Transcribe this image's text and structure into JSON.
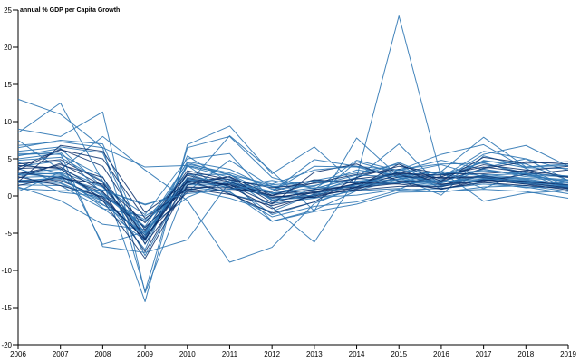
{
  "chart_data": {
    "type": "line",
    "title": "annual % GDP per Capita Growth",
    "xlabel": "",
    "ylabel": "",
    "x": [
      2006,
      2007,
      2008,
      2009,
      2010,
      2011,
      2012,
      2013,
      2014,
      2015,
      2016,
      2017,
      2018,
      2019
    ],
    "xlim": [
      2006,
      2019
    ],
    "ylim": [
      -20,
      25
    ],
    "yticks": [
      -20,
      -15,
      -10,
      -5,
      0,
      5,
      10,
      15,
      20,
      25
    ],
    "grid": false,
    "colors": {
      "light": "#2f77b4",
      "dark": "#0b2f6b"
    },
    "series": [
      {
        "values": [
          13.0,
          11.0,
          6.5,
          -12.8,
          6.5,
          8.0,
          2.5,
          1.0,
          2.5,
          24.2,
          2.5,
          6.0,
          5.0,
          3.5
        ]
      },
      {
        "values": [
          8.5,
          12.5,
          2.0,
          -14.2,
          6.9,
          9.4,
          3.0,
          6.6,
          1.5,
          3.5,
          5.6,
          6.9,
          3.7,
          1.3
        ]
      },
      {
        "values": [
          9.0,
          8.0,
          11.3,
          -13.0,
          1.5,
          8.1,
          3.3,
          -2.0,
          7.8,
          2.6,
          3.3,
          7.9,
          3.9,
          4.1
        ]
      },
      {
        "values": [
          6.5,
          7.5,
          7.0,
          -6.0,
          4.0,
          2.5,
          -1.5,
          -6.2,
          2.4,
          7.0,
          1.2,
          3.8,
          5.0,
          2.1
        ]
      },
      {
        "values": [
          7.5,
          3.5,
          8.0,
          3.5,
          -0.6,
          -8.9,
          -6.9,
          -1.0,
          1.2,
          1.8,
          3.2,
          1.0,
          3.4,
          1.1
        ]
      },
      {
        "values": [
          6.8,
          7.3,
          6.5,
          3.9,
          4.1,
          2.9,
          0.3,
          0.4,
          2.5,
          4.5,
          2.2,
          4.7,
          4.3,
          2.1
        ]
      },
      {
        "values": [
          5.7,
          5.6,
          2.6,
          -8.0,
          2.1,
          2.3,
          -3.4,
          -1.9,
          0.7,
          2.3,
          2.9,
          4.5,
          2.8,
          1.9
        ]
      },
      {
        "values": [
          6.0,
          6.6,
          5.8,
          -6.5,
          4.3,
          3.1,
          1.3,
          1.3,
          3.5,
          2.8,
          3.3,
          2.7,
          2.3,
          1.5
        ]
      },
      {
        "values": [
          5.4,
          6.4,
          1.2,
          -5.6,
          2.3,
          1.1,
          0.0,
          2.1,
          1.8,
          3.2,
          1.8,
          2.8,
          3.0,
          1.8
        ]
      },
      {
        "values": [
          4.5,
          3.0,
          -0.3,
          -7.2,
          5.4,
          1.8,
          0.4,
          0.8,
          2.0,
          2.5,
          1.4,
          2.3,
          1.7,
          1.0
        ]
      },
      {
        "values": [
          5.0,
          5.7,
          -6.8,
          -7.6,
          -5.9,
          1.9,
          0.6,
          4.0,
          3.9,
          2.5,
          0.1,
          5.4,
          3.9,
          4.3
        ]
      },
      {
        "values": [
          4.0,
          4.7,
          -6.5,
          -4.8,
          2.2,
          1.1,
          0.6,
          4.9,
          4.0,
          2.7,
          2.1,
          5.6,
          6.8,
          4.0
        ]
      },
      {
        "values": [
          3.7,
          1.8,
          -0.7,
          -5.2,
          2.9,
          2.9,
          -0.6,
          0.0,
          1.7,
          2.3,
          2.9,
          2.4,
          2.0,
          1.3
        ]
      },
      {
        "values": [
          3.2,
          3.6,
          1.3,
          -5.0,
          1.8,
          0.5,
          -2.8,
          -1.4,
          -0.8,
          0.8,
          1.0,
          1.6,
          1.2,
          0.3
        ]
      },
      {
        "values": [
          2.8,
          3.1,
          0.0,
          -3.4,
          1.7,
          1.7,
          -2.5,
          -0.8,
          1.0,
          3.6,
          4.3,
          4.4,
          3.1,
          0.9
        ]
      },
      {
        "values": [
          2.5,
          2.7,
          0.2,
          -4.3,
          1.5,
          1.5,
          0.4,
          1.1,
          1.3,
          2.0,
          1.4,
          2.2,
          1.6,
          1.3
        ]
      },
      {
        "values": [
          2.1,
          2.3,
          -0.6,
          -5.5,
          4.1,
          0.2,
          -1.0,
          -0.3,
          0.7,
          1.0,
          0.5,
          1.2,
          1.4,
          0.6
        ]
      },
      {
        "values": [
          1.8,
          1.7,
          -1.2,
          -3.4,
          1.2,
          0.6,
          -3.4,
          -2.1,
          -1.1,
          0.5,
          0.6,
          0.9,
          0.6,
          -0.3
        ]
      },
      {
        "values": [
          1.5,
          1.4,
          -1.7,
          -2.7,
          0.9,
          -0.3,
          -2.1,
          0.3,
          1.5,
          3.1,
          4.2,
          2.6,
          2.2,
          1.2
        ]
      },
      {
        "values": [
          3.0,
          0.5,
          -0.1,
          -3.2,
          3.0,
          1.2,
          2.1,
          1.0,
          2.4,
          1.8,
          1.2,
          2.9,
          2.4,
          2.1
        ]
      },
      {
        "values": [
          1.2,
          -0.6,
          -3.8,
          -4.5,
          -0.2,
          2.1,
          1.3,
          -0.2,
          0.1,
          0.9,
          3.3,
          -0.7,
          0.4,
          0.7
        ]
      },
      {
        "values": [
          2.0,
          2.5,
          0.8,
          -1.2,
          0.6,
          4.8,
          1.2,
          2.1,
          3.1,
          4.3,
          0.9,
          1.9,
          1.1,
          1.3
        ]
      },
      {
        "values": [
          0.6,
          3.2,
          1.2,
          -2.5,
          5.0,
          5.7,
          -0.6,
          0.9,
          4.8,
          3.4,
          4.8,
          3.6,
          2.8,
          2.6
        ]
      },
      {
        "values": [
          3.2,
          2.9,
          -1.6,
          -6.0,
          4.1,
          2.9,
          -0.5,
          -0.2,
          4.6,
          3.0,
          1.7,
          4.8,
          3.8,
          3.7
        ]
      },
      {
        "values": [
          2.9,
          4.2,
          2.5,
          -5.7,
          2.0,
          1.5,
          -1.1,
          3.2,
          4.3,
          2.0,
          2.0,
          5.2,
          4.4,
          4.6
        ],
        "dark": true
      },
      {
        "values": [
          4.1,
          3.7,
          -0.6,
          -8.4,
          1.5,
          2.6,
          0.1,
          0.9,
          1.2,
          4.3,
          2.0,
          3.7,
          4.6,
          4.3
        ],
        "dark": true
      },
      {
        "values": [
          2.0,
          2.1,
          -0.3,
          -5.8,
          2.4,
          1.5,
          -0.2,
          0.4,
          1.7,
          1.9,
          0.9,
          2.2,
          1.6,
          0.8
        ],
        "dark": true
      },
      {
        "values": [
          1.4,
          2.6,
          0.5,
          -4.2,
          1.2,
          1.1,
          0.1,
          1.8,
          2.9,
          3.6,
          1.6,
          2.0,
          2.9,
          3.5
        ],
        "dark": true
      },
      {
        "values": [
          3.5,
          6.2,
          5.0,
          -3.0,
          1.0,
          0.2,
          -1.3,
          0.0,
          0.9,
          2.6,
          2.5,
          2.6,
          1.8,
          1.1
        ],
        "dark": true
      },
      {
        "values": [
          2.4,
          4.4,
          1.4,
          -5.3,
          0.5,
          0.9,
          0.6,
          2.2,
          1.7,
          1.6,
          1.0,
          1.8,
          1.4,
          1.0
        ],
        "dark": true
      },
      {
        "values": [
          1.9,
          6.8,
          6.0,
          -2.2,
          1.8,
          2.6,
          -0.9,
          0.5,
          1.1,
          1.7,
          2.6,
          4.2,
          3.5,
          2.6
        ],
        "dark": true
      },
      {
        "values": [
          3.7,
          3.9,
          0.6,
          -7.5,
          2.1,
          0.3,
          -2.3,
          -0.8,
          2.5,
          4.0,
          3.0,
          3.0,
          3.4,
          4.0
        ],
        "dark": true
      },
      {
        "values": [
          2.6,
          1.4,
          -0.1,
          -5.9,
          3.1,
          1.9,
          0.0,
          -0.2,
          1.2,
          2.9,
          1.5,
          2.7,
          1.9,
          1.5
        ],
        "dark": true
      },
      {
        "values": [
          3.8,
          6.3,
          4.0,
          -4.6,
          3.4,
          2.2,
          1.1,
          1.7,
          2.3,
          3.0,
          2.8,
          3.9,
          3.2,
          2.5
        ],
        "dark": true
      },
      {
        "values": [
          4.3,
          4.9,
          1.9,
          -6.4,
          0.8,
          1.7,
          -0.3,
          0.6,
          1.6,
          3.2,
          2.4,
          2.5,
          1.8,
          1.9
        ],
        "dark": true
      },
      {
        "values": [
          3.2,
          2.4,
          1.6,
          -3.6,
          2.8,
          1.3,
          -1.7,
          0.2,
          0.8,
          1.3,
          1.3,
          2.1,
          2.0,
          1.4
        ],
        "dark": true
      },
      {
        "values": [
          3.0,
          2.5,
          -1.1,
          -5.2,
          2.5,
          1.8,
          -0.3,
          0.1,
          1.5,
          1.8,
          1.8,
          2.6,
          1.8,
          1.4
        ]
      },
      {
        "values": [
          5.5,
          5.9,
          0.3,
          -4.1,
          4.5,
          2.8,
          1.6,
          3.5,
          4.0,
          3.5,
          3.0,
          3.4,
          3.0,
          2.7
        ]
      },
      {
        "values": [
          1.0,
          0.7,
          0.8,
          -1.1,
          0.3,
          0.9,
          1.5,
          2.0,
          1.9,
          2.2,
          1.9,
          2.3,
          2.1,
          1.7
        ]
      },
      {
        "values": [
          4.8,
          5.2,
          2.0,
          -4.9,
          4.6,
          3.6,
          0.9,
          1.4,
          2.8,
          2.6,
          1.9,
          3.6,
          2.6,
          2.2
        ]
      }
    ]
  }
}
